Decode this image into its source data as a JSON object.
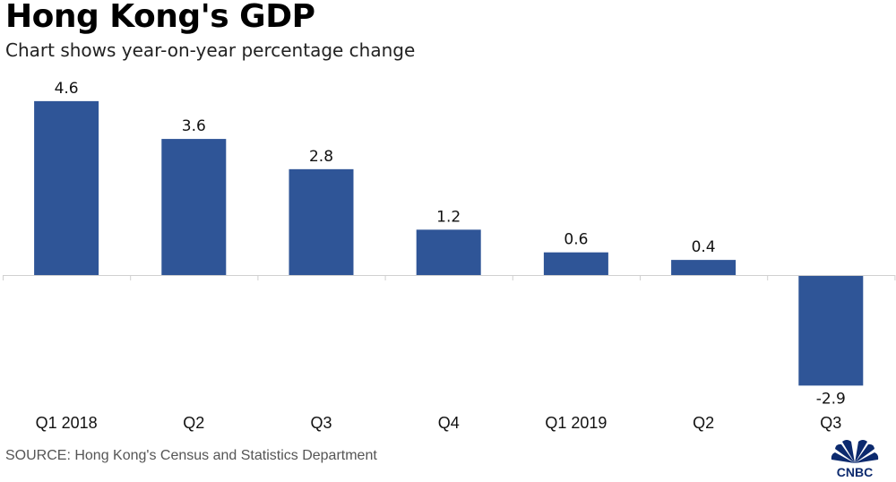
{
  "header": {
    "title": "Hong Kong's GDP",
    "subtitle": "Chart shows year-on-year percentage change"
  },
  "footer": {
    "source": "SOURCE: Hong Kong's Census and Statistics Department",
    "logo_text": "CNBC",
    "logo_icon": "nbc-peacock-icon"
  },
  "colors": {
    "bar": "#2f5597",
    "axis": "#d0d0d0",
    "logo": "#0c2a6e"
  },
  "chart_data": {
    "type": "bar",
    "title": "Hong Kong's GDP",
    "subtitle": "Chart shows year-on-year percentage change",
    "xlabel": "",
    "ylabel": "",
    "categories": [
      "Q1 2018",
      "Q2",
      "Q3",
      "Q4",
      "Q1 2019",
      "Q2",
      "Q3"
    ],
    "values": [
      4.6,
      3.6,
      2.8,
      1.2,
      0.6,
      0.4,
      -2.9
    ],
    "data_labels": [
      "4.6",
      "3.6",
      "2.8",
      "1.2",
      "0.6",
      "0.4",
      "-2.9"
    ],
    "ylim": [
      -3.5,
      5.5
    ],
    "grid": false,
    "legend": "none"
  }
}
